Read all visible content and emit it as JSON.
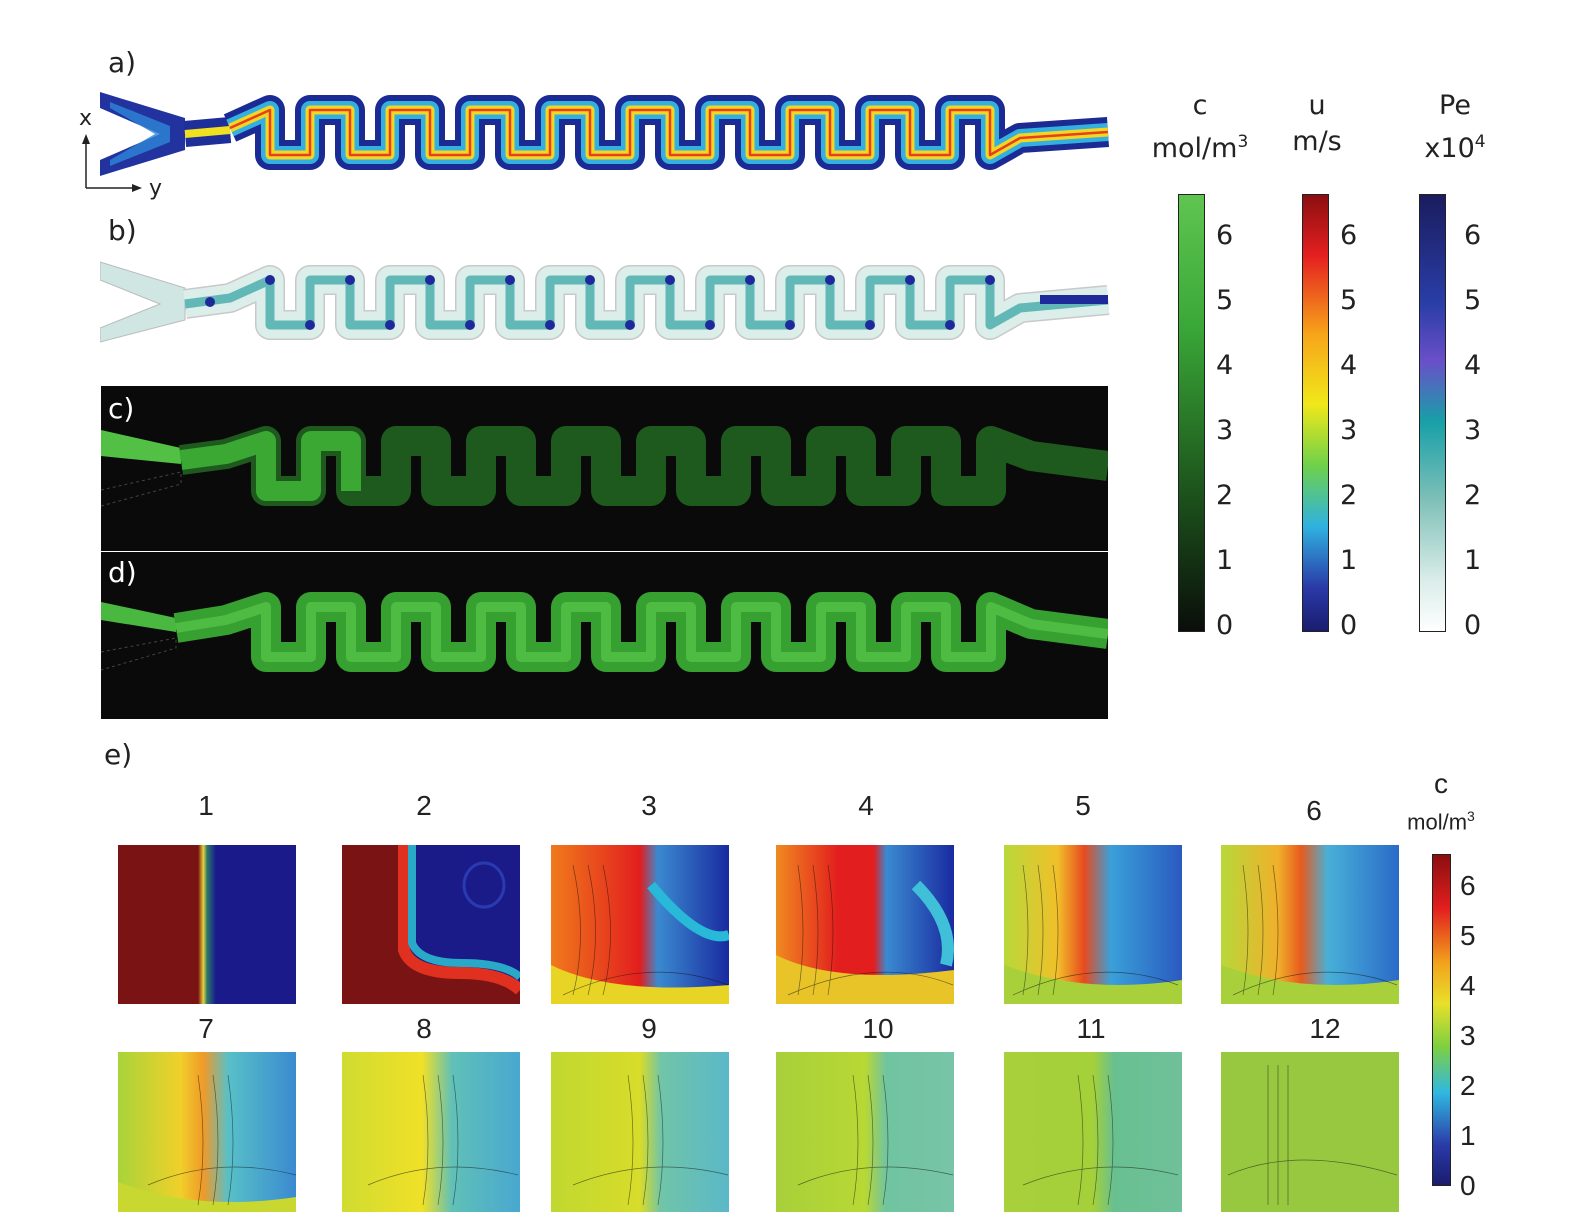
{
  "figure": {
    "panel_labels": {
      "a": "a)",
      "b": "b)",
      "c": "c)",
      "d": "d)",
      "e": "e)"
    },
    "axes": {
      "x": "x",
      "y": "y"
    },
    "colorbars": [
      {
        "id": "c",
        "title_line1": "c",
        "title_line2": "mol/m",
        "title_sup": "3",
        "ticks": [
          "6",
          "5",
          "4",
          "3",
          "2",
          "1",
          "0"
        ],
        "colors": [
          "#5fc550",
          "#0a0e0a"
        ]
      },
      {
        "id": "u",
        "title_line1": "u",
        "title_line2": "m/s",
        "title_sup": "",
        "ticks": [
          "6",
          "5",
          "4",
          "3",
          "2",
          "1",
          "0"
        ],
        "colors": [
          "#8b0e10",
          "#e52020",
          "#f7a51a",
          "#f0e81a",
          "#6fd14a",
          "#2fb2e0",
          "#2a3aa8",
          "#1a1c6e"
        ]
      },
      {
        "id": "Pe",
        "title_line1": "Pe",
        "title_line2": "x10",
        "title_sup": "4",
        "ticks": [
          "6",
          "5",
          "4",
          "3",
          "2",
          "1",
          "0"
        ],
        "colors": [
          "#1a1c5e",
          "#2a3ea8",
          "#6a4fc8",
          "#18a0a8",
          "#7fc0b8",
          "#d8ece8",
          "#ffffff"
        ]
      }
    ],
    "subplot_titles": [
      "1",
      "2",
      "3",
      "4",
      "5",
      "6",
      "7",
      "8",
      "9",
      "10",
      "11",
      "12"
    ],
    "e_colorbar": {
      "title_line1": "c",
      "title_line2": "mol/m",
      "title_sup": "3",
      "ticks": [
        "6",
        "5",
        "4",
        "3",
        "2",
        "1",
        "0"
      ]
    }
  }
}
